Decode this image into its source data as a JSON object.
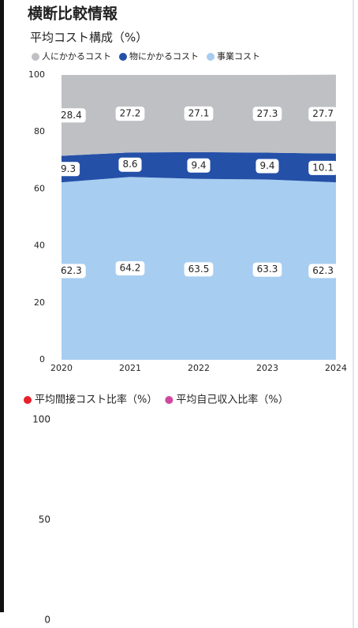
{
  "header": {
    "title": "横断比較情報"
  },
  "chart_data": [
    {
      "type": "stacked_area",
      "title": "平均コスト構成（%）",
      "categories": [
        "2020",
        "2021",
        "2022",
        "2023",
        "2024"
      ],
      "series": [
        {
          "name": "人にかかるコスト",
          "color": "#bfc0c4",
          "values": [
            28.4,
            27.2,
            27.1,
            27.3,
            27.7
          ]
        },
        {
          "name": "物にかかるコスト",
          "color": "#2450a8",
          "values": [
            9.3,
            8.6,
            9.4,
            9.4,
            10.1
          ]
        },
        {
          "name": "事業コスト",
          "color": "#a7cdf0",
          "values": [
            62.3,
            64.2,
            63.5,
            63.3,
            62.3
          ]
        }
      ],
      "ylim": [
        0,
        100
      ],
      "yticks": [
        0,
        20,
        40,
        60,
        80,
        100
      ]
    },
    {
      "type": "line",
      "categories": [],
      "series": [
        {
          "name": "平均間接コスト比率（%）",
          "color": "#e8202a",
          "values": []
        },
        {
          "name": "平均自己収入比率（%）",
          "color": "#d0489c",
          "values": []
        }
      ],
      "ylim": [
        0,
        100
      ],
      "yticks": [
        0,
        50,
        100
      ]
    }
  ]
}
